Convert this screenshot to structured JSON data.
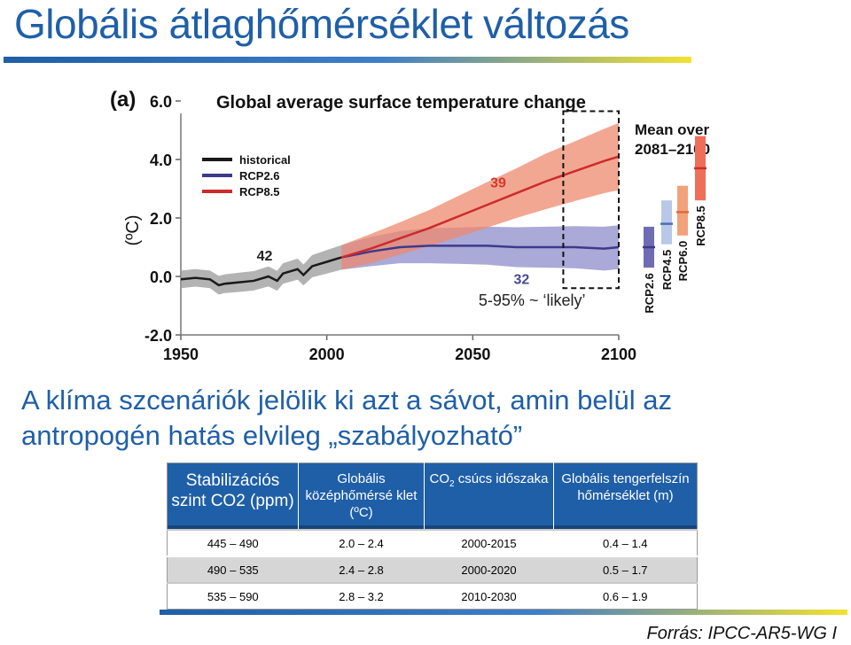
{
  "slide": {
    "title": "Globális átlaghőmérséklet változás",
    "caption_line1": "A klíma szcenáriók jelölik ki azt a sávot, amin belül az",
    "caption_line2": "antropogén hatás elvileg „szabályozható”",
    "source": "Forrás: IPCC-AR5-WG I",
    "colors": {
      "title": "#1f5fa8",
      "table_header": "#1f5fa8",
      "accent_yellow": "#f3e230"
    }
  },
  "chart_data": {
    "type": "line",
    "panel_label": "(a)",
    "title": "Global average surface temperature change",
    "ylabel": "(ºC)",
    "xlim": [
      1950,
      2100
    ],
    "ylim": [
      -2.0,
      6.0
    ],
    "x_ticks": [
      "1950",
      "2000",
      "2050",
      "2100"
    ],
    "y_ticks": [
      "-2.0",
      "0.0",
      "2.0",
      "4.0",
      "6.0"
    ],
    "legend": [
      {
        "name": "historical",
        "color": "#1a1a1a"
      },
      {
        "name": "RCP2.6",
        "color": "#3d3a8c"
      },
      {
        "name": "RCP8.5",
        "color": "#cc2b2b"
      }
    ],
    "legend_position": "top-left",
    "annotations": {
      "historical_models": "42",
      "rcp26_models": "32",
      "rcp85_models": "39",
      "band_note": "5-95% ~ ‘likely’",
      "mean_box": "Mean over 2081–2100"
    },
    "series": [
      {
        "name": "historical",
        "color": "#1a1a1a",
        "band_color": "#9a9a9a",
        "x": [
          1950,
          1955,
          1960,
          1963,
          1965,
          1970,
          1975,
          1980,
          1983,
          1985,
          1990,
          1992,
          1995,
          2000,
          2005
        ],
        "y": [
          -0.1,
          -0.05,
          -0.1,
          -0.3,
          -0.25,
          -0.2,
          -0.15,
          0.0,
          -0.15,
          0.1,
          0.25,
          0.05,
          0.35,
          0.5,
          0.65
        ],
        "band_halfwidth": [
          0.3,
          0.3,
          0.3,
          0.32,
          0.32,
          0.33,
          0.33,
          0.34,
          0.34,
          0.35,
          0.36,
          0.36,
          0.38,
          0.4,
          0.42
        ]
      },
      {
        "name": "RCP2.6",
        "color": "#3d3a8c",
        "band_color": "#8d8cc9",
        "x": [
          2005,
          2015,
          2025,
          2035,
          2045,
          2055,
          2065,
          2075,
          2085,
          2095,
          2100
        ],
        "y": [
          0.65,
          0.85,
          1.0,
          1.05,
          1.05,
          1.05,
          1.0,
          1.0,
          1.0,
          0.95,
          1.0
        ],
        "band_halfwidth": [
          0.42,
          0.5,
          0.55,
          0.6,
          0.62,
          0.65,
          0.68,
          0.7,
          0.72,
          0.75,
          0.75
        ]
      },
      {
        "name": "RCP8.5",
        "color": "#cc2b2b",
        "band_color": "#ee8a6e",
        "x": [
          2005,
          2015,
          2025,
          2035,
          2045,
          2055,
          2065,
          2075,
          2085,
          2095,
          2100
        ],
        "y": [
          0.65,
          0.95,
          1.3,
          1.65,
          2.05,
          2.45,
          2.85,
          3.25,
          3.6,
          3.95,
          4.1
        ],
        "band_halfwidth": [
          0.42,
          0.5,
          0.55,
          0.62,
          0.7,
          0.78,
          0.85,
          0.95,
          1.02,
          1.1,
          1.15
        ]
      }
    ],
    "bars_2081_2100": [
      {
        "name": "RCP2.6",
        "low": 0.3,
        "mean": 1.0,
        "high": 1.7,
        "color": "#3d3a8c",
        "band_color": "#6f6cb5"
      },
      {
        "name": "RCP4.5",
        "low": 1.1,
        "mean": 1.8,
        "high": 2.6,
        "color": "#4a6fb3",
        "band_color": "#b8c8e8"
      },
      {
        "name": "RCP6.0",
        "low": 1.4,
        "mean": 2.2,
        "high": 3.1,
        "color": "#e06a3a",
        "band_color": "#f2a27a"
      },
      {
        "name": "RCP8.5",
        "low": 2.6,
        "mean": 3.7,
        "high": 4.8,
        "color": "#cc2b2b",
        "band_color": "#ee6e5a"
      }
    ]
  },
  "table": {
    "headers": {
      "col1": "Stabilizációs szint CO2 (ppm)",
      "col2": "Globális középhőmérsé klet (ºC)",
      "col3_pre": "CO",
      "col3_sub": "2",
      "col3_post": " csúcs időszaka",
      "col4": "Globális tengerfelszín hőmérséklet (m)"
    },
    "rows": [
      {
        "co2": "445 – 490",
        "temp": "2.0 – 2.4",
        "peak": "2000-2015",
        "sea": "0.4 – 1.4"
      },
      {
        "co2": "490 – 535",
        "temp": "2.4 – 2.8",
        "peak": "2000-2020",
        "sea": "0.5 – 1.7"
      },
      {
        "co2": "535 – 590",
        "temp": "2.8 – 3.2",
        "peak": "2010-2030",
        "sea": "0.6 – 1.9"
      }
    ]
  }
}
